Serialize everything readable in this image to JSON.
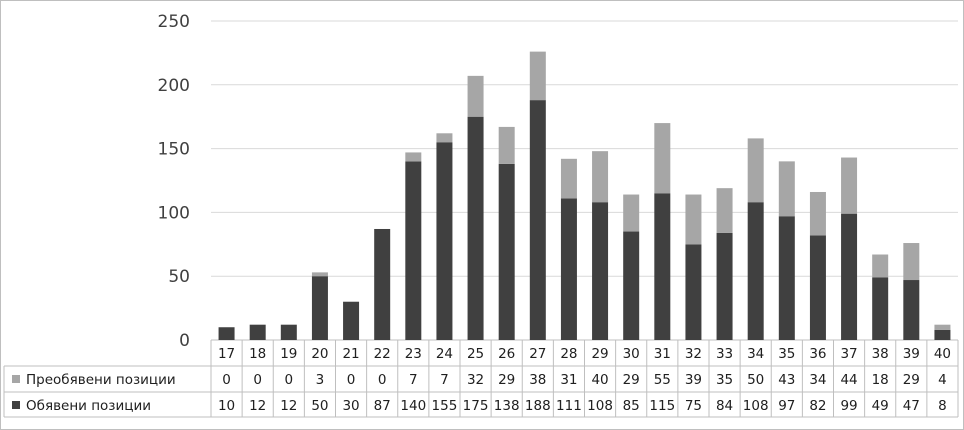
{
  "chart_data": {
    "type": "bar",
    "stacked": true,
    "categories": [
      "17",
      "18",
      "19",
      "20",
      "21",
      "22",
      "23",
      "24",
      "25",
      "26",
      "27",
      "28",
      "29",
      "30",
      "31",
      "32",
      "33",
      "34",
      "35",
      "36",
      "37",
      "38",
      "39",
      "40"
    ],
    "series": [
      {
        "name": "Обявени позиции",
        "values": [
          10,
          12,
          12,
          50,
          30,
          87,
          140,
          155,
          175,
          138,
          188,
          111,
          108,
          85,
          115,
          75,
          84,
          108,
          97,
          82,
          99,
          49,
          47,
          8
        ],
        "color": "#404040"
      },
      {
        "name": "Преобявени позиции",
        "values": [
          0,
          0,
          0,
          3,
          0,
          0,
          7,
          7,
          32,
          29,
          38,
          31,
          40,
          29,
          55,
          39,
          35,
          50,
          43,
          34,
          44,
          18,
          29,
          4
        ],
        "color": "#a6a6a6"
      }
    ],
    "y_ticks": [
      "0",
      "50",
      "100",
      "150",
      "200",
      "250"
    ],
    "ylim": [
      0,
      250
    ],
    "grid": true,
    "data_table": true,
    "title": "",
    "xlabel": "",
    "ylabel": ""
  }
}
